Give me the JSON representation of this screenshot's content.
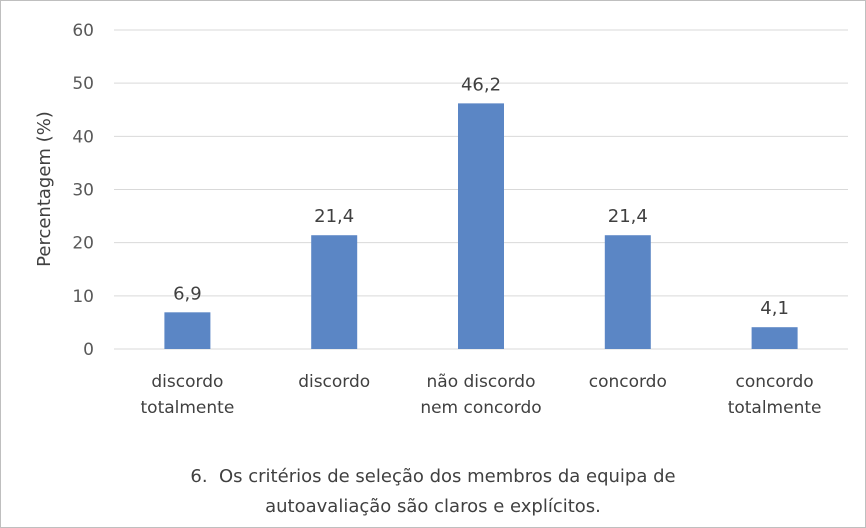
{
  "chart_data": {
    "type": "bar",
    "categories": [
      [
        "discordo",
        "totalmente"
      ],
      [
        "discordo"
      ],
      [
        "não discordo",
        "nem concordo"
      ],
      [
        "concordo"
      ],
      [
        "concordo",
        "totalmente"
      ]
    ],
    "values": [
      6.9,
      21.4,
      46.2,
      21.4,
      4.1
    ],
    "data_labels": [
      "6,9",
      "21,4",
      "46,2",
      "21,4",
      "4,1"
    ],
    "ylabel": "Percentagem (%)",
    "ylim": [
      0,
      60
    ],
    "yticks": [
      "0",
      "10",
      "20",
      "30",
      "40",
      "50",
      "60"
    ],
    "grid": true,
    "bar_color": "#5b86c5",
    "grid_color": "#d9d9d9",
    "caption": {
      "line1": "6.  Os critérios de seleção dos membros da equipa de",
      "line2": "autoavaliação são claros e explícitos."
    }
  }
}
